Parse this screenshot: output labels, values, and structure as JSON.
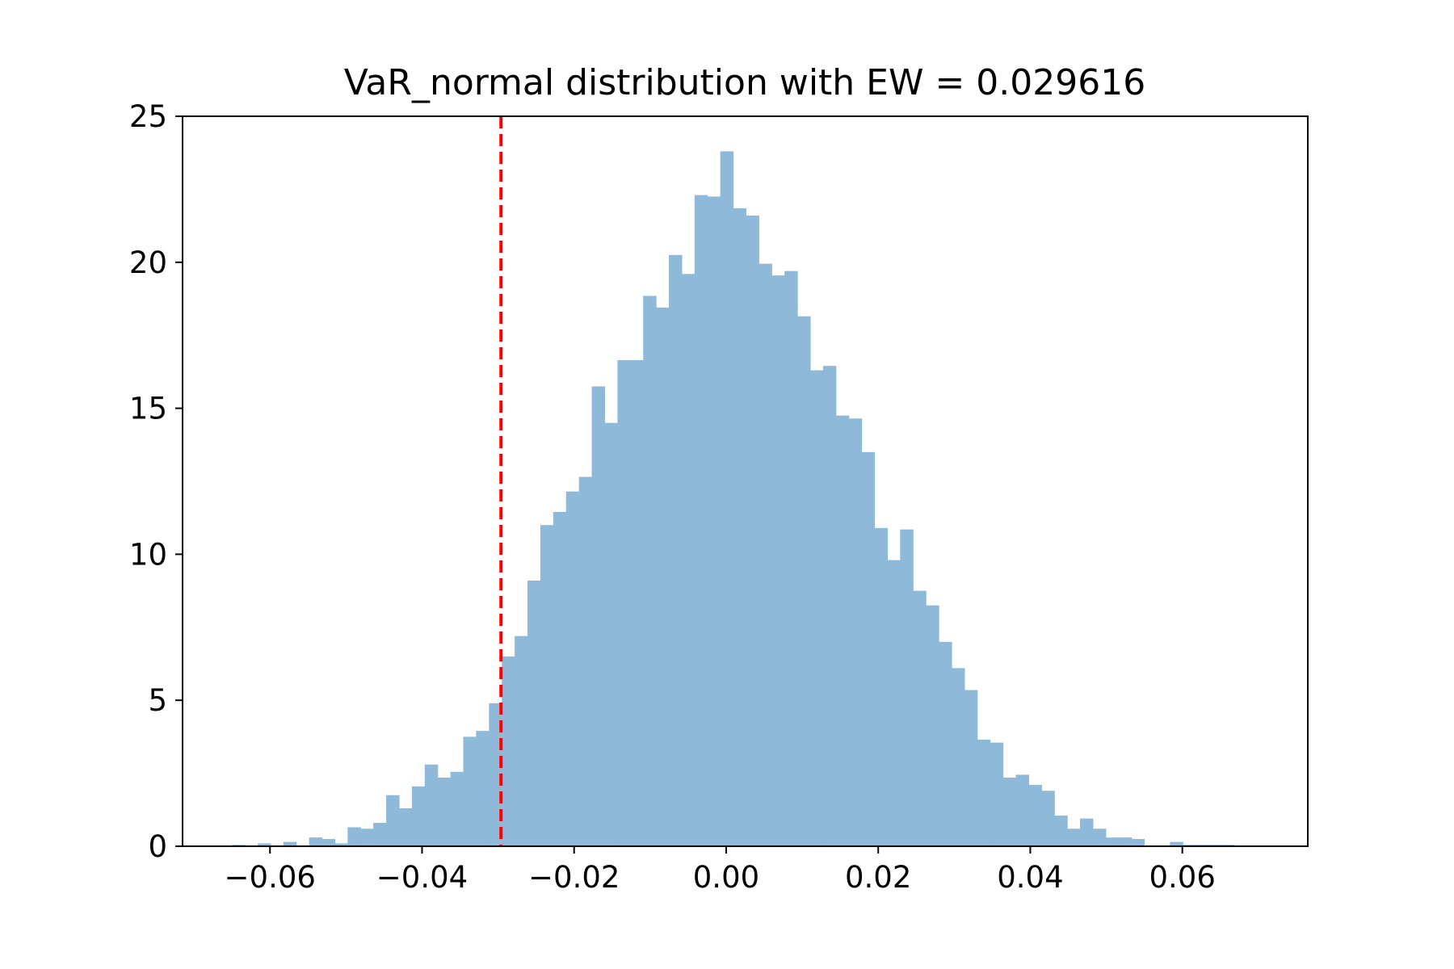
{
  "chart_data": {
    "type": "bar",
    "title": "VaR_normal distribution with EW = 0.029616",
    "xlabel": "",
    "ylabel": "",
    "xlim": [
      -0.0715,
      0.0765
    ],
    "ylim": [
      0,
      25
    ],
    "grid": false,
    "legend": "none",
    "bar_color": "#8fb9d9",
    "var_line": {
      "x": -0.029616,
      "color": "#ff0000",
      "style": "dashed"
    },
    "xticks": [
      {
        "value": -0.06,
        "label": "−0.06"
      },
      {
        "value": -0.04,
        "label": "−0.04"
      },
      {
        "value": -0.02,
        "label": "−0.02"
      },
      {
        "value": 0.0,
        "label": "0.00"
      },
      {
        "value": 0.02,
        "label": "0.02"
      },
      {
        "value": 0.04,
        "label": "0.04"
      },
      {
        "value": 0.06,
        "label": "0.06"
      }
    ],
    "yticks": [
      {
        "value": 0,
        "label": "0"
      },
      {
        "value": 5,
        "label": "5"
      },
      {
        "value": 10,
        "label": "10"
      },
      {
        "value": 15,
        "label": "15"
      },
      {
        "value": 20,
        "label": "20"
      },
      {
        "value": 25,
        "label": "25"
      }
    ],
    "bin_start": -0.065,
    "bin_width": 0.00169,
    "values": [
      0.05,
      0.0,
      0.1,
      0.0,
      0.15,
      0.0,
      0.3,
      0.25,
      0.1,
      0.65,
      0.6,
      0.8,
      1.75,
      1.3,
      2.05,
      2.8,
      2.35,
      2.55,
      3.75,
      3.95,
      4.9,
      6.5,
      7.2,
      9.1,
      11.0,
      11.45,
      12.15,
      12.65,
      15.75,
      14.5,
      16.65,
      16.65,
      18.85,
      18.45,
      20.25,
      19.6,
      22.3,
      22.25,
      23.8,
      21.85,
      21.6,
      19.95,
      19.55,
      19.7,
      18.15,
      16.3,
      16.45,
      14.75,
      14.65,
      13.5,
      10.9,
      9.8,
      10.85,
      8.75,
      8.25,
      7.0,
      6.1,
      5.35,
      3.65,
      3.55,
      2.35,
      2.45,
      2.1,
      1.9,
      1.05,
      0.6,
      0.95,
      0.6,
      0.3,
      0.3,
      0.25,
      0.0,
      0.0,
      0.15,
      0.05,
      0.05,
      0.05,
      0.05
    ]
  }
}
